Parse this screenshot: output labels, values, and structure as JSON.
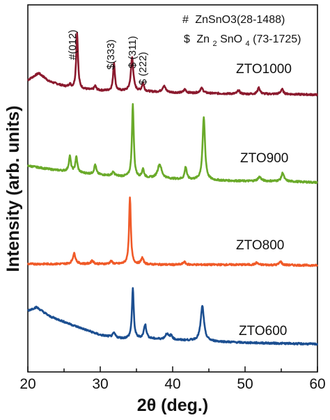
{
  "chart_data": {
    "type": "line",
    "xlabel": "2θ (deg.)",
    "ylabel": "Intensity (arb. units)",
    "xlim": [
      20,
      60
    ],
    "xticks": [
      "20",
      "30",
      "40",
      "50",
      "60"
    ],
    "grid": false,
    "legend": {
      "position": "top-right",
      "entries": [
        {
          "symbol": "#",
          "name": "ZnSnO3(28-1488)"
        },
        {
          "symbol": "$",
          "name": "Zn",
          "sub1": "2",
          "mid": "SnO",
          "sub2": "4",
          "tail": "(73-1725)"
        }
      ]
    },
    "annotations": [
      {
        "text": "#(012)",
        "x": 26.9
      },
      {
        "text": "$(333)",
        "x": 32.0
      },
      {
        "text": "$ (311)",
        "x": 34.5
      },
      {
        "text": "$ (222)",
        "x": 36.2
      }
    ],
    "series": [
      {
        "name": "ZTO1000",
        "color": "#8b1a2e",
        "offset": 3.0,
        "baseline": [
          [
            20,
            0.22
          ],
          [
            21.5,
            0.32
          ],
          [
            23,
            0.2
          ],
          [
            26,
            0.1
          ],
          [
            30,
            0.07
          ],
          [
            35,
            0.06
          ],
          [
            40,
            0.04
          ],
          [
            45,
            0.03
          ],
          [
            50,
            0.02
          ],
          [
            55,
            0.02
          ],
          [
            60,
            0.01
          ]
        ],
        "peaks": [
          [
            25.8,
            0.05,
            0.3
          ],
          [
            26.8,
            0.8,
            0.22
          ],
          [
            29.3,
            0.06,
            0.25
          ],
          [
            31.9,
            0.4,
            0.22
          ],
          [
            34.4,
            0.48,
            0.3
          ],
          [
            35.9,
            0.12,
            0.25
          ],
          [
            38.8,
            0.09,
            0.4
          ],
          [
            41.7,
            0.05,
            0.3
          ],
          [
            44.0,
            0.07,
            0.4
          ],
          [
            49.1,
            0.05,
            0.3
          ],
          [
            51.9,
            0.09,
            0.3
          ],
          [
            55.1,
            0.07,
            0.3
          ]
        ]
      },
      {
        "name": "ZTO900",
        "color": "#6aaa2a",
        "offset": 2.0,
        "baseline": [
          [
            20,
            0.25
          ],
          [
            23,
            0.2
          ],
          [
            27,
            0.15
          ],
          [
            30,
            0.12
          ],
          [
            35,
            0.08
          ],
          [
            40,
            0.06
          ],
          [
            45,
            0.04
          ],
          [
            50,
            0.03
          ],
          [
            55,
            0.03
          ],
          [
            60,
            0.01
          ]
        ],
        "peaks": [
          [
            25.8,
            0.22,
            0.25
          ],
          [
            26.7,
            0.22,
            0.25
          ],
          [
            29.3,
            0.14,
            0.25
          ],
          [
            31.8,
            0.05,
            0.3
          ],
          [
            34.5,
            1.05,
            0.22
          ],
          [
            35.9,
            0.12,
            0.25
          ],
          [
            38.2,
            0.2,
            0.5
          ],
          [
            41.8,
            0.18,
            0.25
          ],
          [
            44.3,
            0.9,
            0.3
          ],
          [
            52.0,
            0.06,
            0.4
          ],
          [
            55.2,
            0.12,
            0.3
          ]
        ]
      },
      {
        "name": "ZTO800",
        "color": "#f05a28",
        "offset": 1.0,
        "baseline": [
          [
            20,
            0.02
          ],
          [
            25,
            0.02
          ],
          [
            30,
            0.02
          ],
          [
            40,
            0.01
          ],
          [
            50,
            0.01
          ],
          [
            60,
            0.0
          ]
        ],
        "peaks": [
          [
            26.4,
            0.15,
            0.35
          ],
          [
            28.9,
            0.05,
            0.3
          ],
          [
            31.5,
            0.04,
            0.3
          ],
          [
            34.1,
            0.95,
            0.22
          ],
          [
            35.8,
            0.09,
            0.3
          ],
          [
            41.6,
            0.04,
            0.3
          ],
          [
            51.6,
            0.03,
            0.3
          ],
          [
            54.9,
            0.05,
            0.3
          ]
        ]
      },
      {
        "name": "ZTO600",
        "color": "#1c4f91",
        "offset": 0.0,
        "baseline": [
          [
            20,
            0.5
          ],
          [
            21.2,
            0.55
          ],
          [
            23,
            0.42
          ],
          [
            26,
            0.3
          ],
          [
            30,
            0.15
          ],
          [
            33,
            0.1
          ],
          [
            36,
            0.1
          ],
          [
            40,
            0.08
          ],
          [
            45,
            0.06
          ],
          [
            50,
            0.04
          ],
          [
            55,
            0.03
          ],
          [
            60,
            0.02
          ]
        ],
        "peaks": [
          [
            31.9,
            0.06,
            0.3
          ],
          [
            34.5,
            0.72,
            0.22
          ],
          [
            36.2,
            0.2,
            0.3
          ],
          [
            39.2,
            0.08,
            0.4
          ],
          [
            39.8,
            0.06,
            0.3
          ],
          [
            44.1,
            0.5,
            0.4
          ]
        ]
      }
    ]
  }
}
